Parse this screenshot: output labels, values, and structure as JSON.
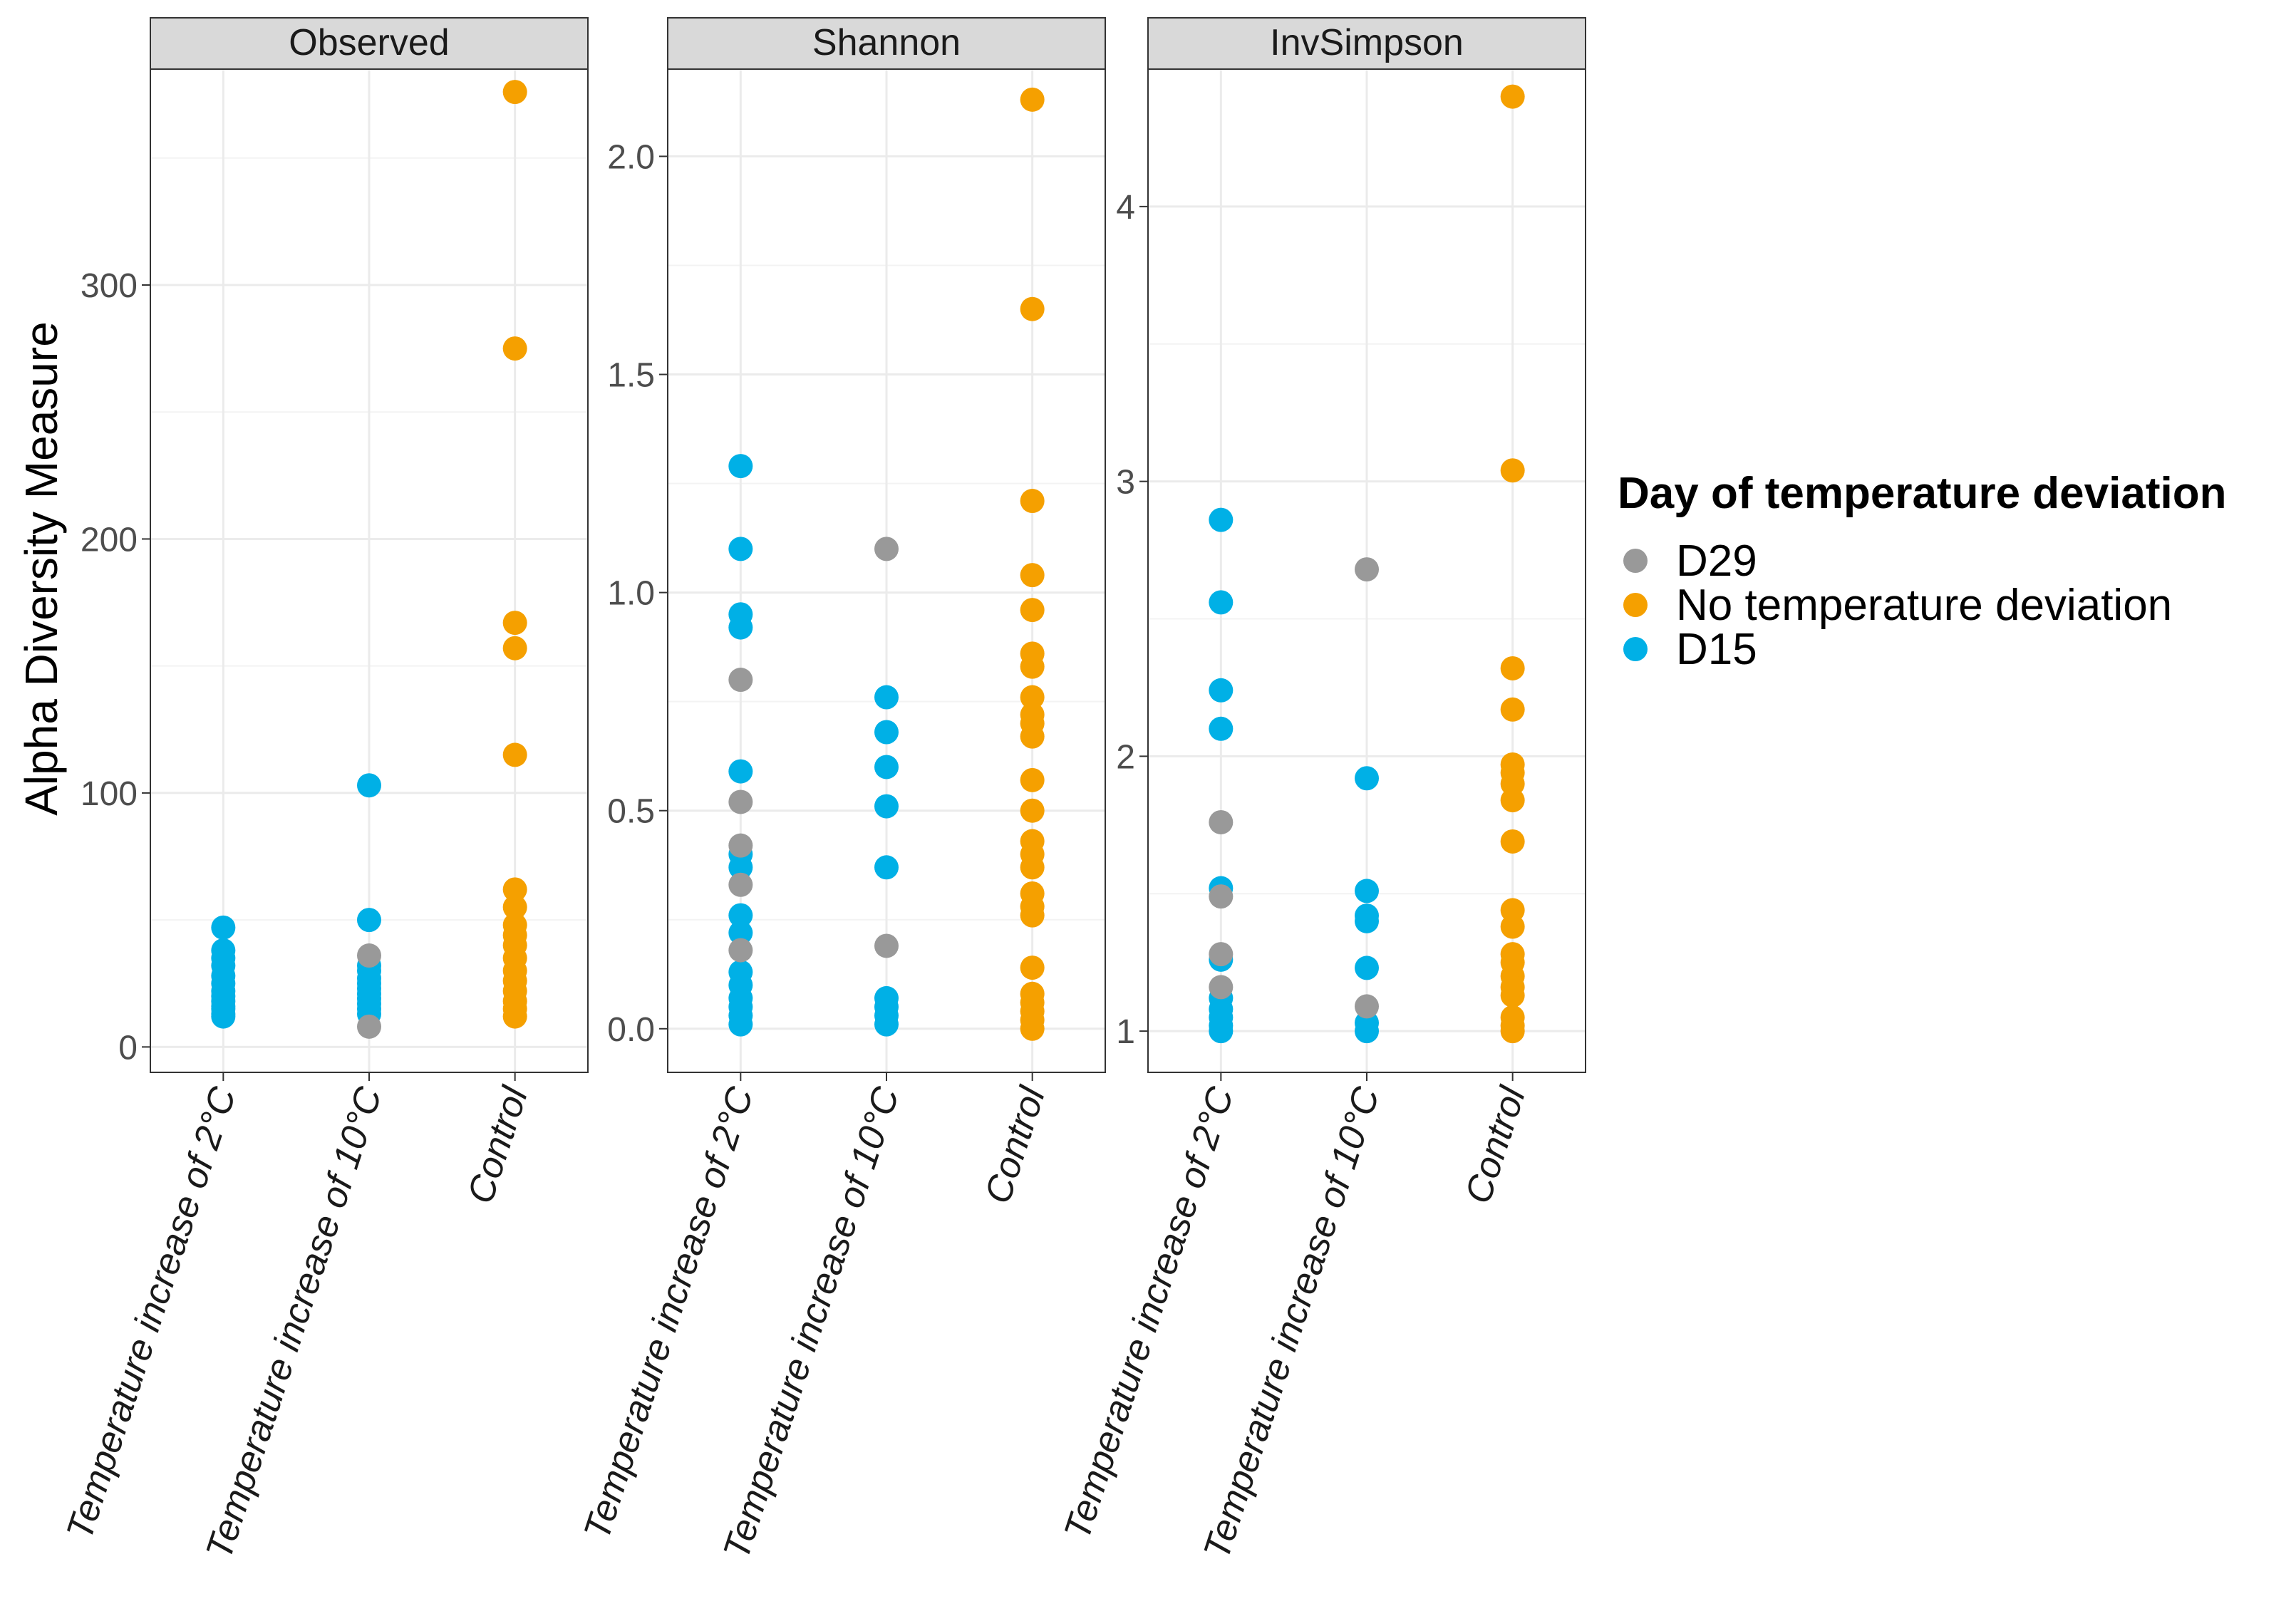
{
  "chart_data": {
    "type": "scatter",
    "ylabel": "Alpha Diversity Measure",
    "categories": [
      "Temperature increase of 2°C",
      "Temperature increase of 10°C",
      "Control"
    ],
    "legend": {
      "title": "Day of temperature deviation",
      "entries": [
        {
          "name": "D29",
          "color": "#999999"
        },
        {
          "name": "No temperature deviation",
          "color": "#F5A000"
        },
        {
          "name": "D15",
          "color": "#00B0E6"
        }
      ]
    },
    "panels": [
      {
        "title": "Observed",
        "ylim": [
          -10,
          385
        ],
        "yticks": [
          0,
          100,
          200,
          300
        ],
        "ytick_labels": [
          "0",
          "100",
          "200",
          "300"
        ],
        "points": {
          "Temperature increase of 2°C": {
            "D29": [],
            "No temperature deviation": [],
            "D15": [
              47,
              38,
              35,
              32,
              28,
              25,
              22,
              20,
              18,
              16,
              15,
              13,
              12
            ]
          },
          "Temperature increase of 10°C": {
            "D29": [
              36,
              8
            ],
            "No temperature deviation": [],
            "D15": [
              103,
              50,
              32,
              30,
              27,
              25,
              23,
              21,
              19,
              17,
              15,
              13
            ]
          },
          "Control": {
            "D29": [],
            "No temperature deviation": [
              376,
              275,
              167,
              157,
              115,
              62,
              55,
              48,
              44,
              40,
              35,
              30,
              26,
              22,
              18,
              15,
              12
            ],
            "D15": []
          }
        }
      },
      {
        "title": "Shannon",
        "ylim": [
          -0.1,
          2.2
        ],
        "yticks": [
          0,
          0.5,
          1,
          1.5,
          2
        ],
        "ytick_labels": [
          "0.0",
          "0.5",
          "1.0",
          "1.5",
          "2.0"
        ],
        "points": {
          "Temperature increase of 2°C": {
            "D29": [
              0.8,
              0.52,
              0.42,
              0.33,
              0.18
            ],
            "No temperature deviation": [],
            "D15": [
              1.29,
              1.1,
              0.95,
              0.92,
              0.59,
              0.4,
              0.37,
              0.26,
              0.22,
              0.13,
              0.1,
              0.07,
              0.05,
              0.03,
              0.01
            ]
          },
          "Temperature increase of 10°C": {
            "D29": [
              1.1,
              0.19
            ],
            "No temperature deviation": [],
            "D15": [
              0.76,
              0.68,
              0.6,
              0.51,
              0.37,
              0.07,
              0.05,
              0.03,
              0.01
            ]
          },
          "Control": {
            "D29": [],
            "No temperature deviation": [
              2.13,
              1.65,
              1.21,
              1.04,
              0.96,
              0.86,
              0.83,
              0.76,
              0.72,
              0.7,
              0.67,
              0.57,
              0.5,
              0.43,
              0.4,
              0.37,
              0.31,
              0.28,
              0.26,
              0.14,
              0.08,
              0.06,
              0.04,
              0.02,
              0.0
            ]
          }
        }
      },
      {
        "title": "InvSimpson",
        "ylim": [
          0.85,
          4.5
        ],
        "yticks": [
          1,
          2,
          3,
          4
        ],
        "ytick_labels": [
          "1",
          "2",
          "3",
          "4"
        ],
        "points": {
          "Temperature increase of 2°C": {
            "D29": [
              1.76,
              1.49,
              1.28,
              1.16
            ],
            "No temperature deviation": [],
            "D15": [
              2.86,
              2.56,
              2.24,
              2.1,
              1.52,
              1.26,
              1.12,
              1.08,
              1.05,
              1.02,
              1.0
            ]
          },
          "Temperature increase of 10°C": {
            "D29": [
              2.68,
              1.09
            ],
            "No temperature deviation": [],
            "D15": [
              1.92,
              1.51,
              1.42,
              1.4,
              1.23,
              1.03,
              1.0
            ]
          },
          "Control": {
            "D29": [],
            "No temperature deviation": [
              4.4,
              3.04,
              2.32,
              2.17,
              1.97,
              1.94,
              1.9,
              1.84,
              1.69,
              1.44,
              1.38,
              1.28,
              1.25,
              1.2,
              1.16,
              1.13,
              1.05,
              1.02,
              1.0
            ]
          }
        }
      }
    ]
  }
}
